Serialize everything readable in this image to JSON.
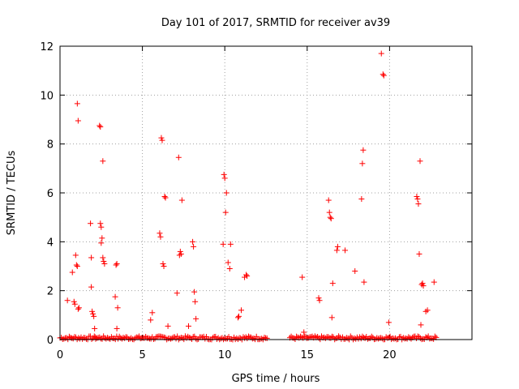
{
  "chart_data": {
    "type": "scatter",
    "title": "Day 101 of 2017, SRMTID for receiver av39",
    "xlabel": "GPS time / hours",
    "ylabel": "SRMTID / TECUs",
    "xlim": [
      0,
      25
    ],
    "ylim": [
      0,
      12
    ],
    "xticks": [
      0,
      5,
      10,
      15,
      20
    ],
    "yticks": [
      0,
      2,
      4,
      6,
      8,
      10,
      12
    ],
    "grid": true,
    "marker": "+",
    "color": "#ff0000",
    "series": [
      {
        "name": "SRMTID",
        "x": [
          0.45,
          0.75,
          0.85,
          0.9,
          0.95,
          1.0,
          1.05,
          1.05,
          1.1,
          1.1,
          1.15,
          1.85,
          1.9,
          1.9,
          1.95,
          2.0,
          2.05,
          2.1,
          2.15,
          2.4,
          2.45,
          2.45,
          2.5,
          2.5,
          2.55,
          2.6,
          2.6,
          2.65,
          2.7,
          3.35,
          3.4,
          3.45,
          3.45,
          3.5,
          5.5,
          5.6,
          6.05,
          6.1,
          6.15,
          6.2,
          6.25,
          6.3,
          6.35,
          6.4,
          6.55,
          7.1,
          7.2,
          7.25,
          7.3,
          7.35,
          7.4,
          7.8,
          8.05,
          8.1,
          8.15,
          8.2,
          8.25,
          9.9,
          9.95,
          10.0,
          10.05,
          10.1,
          10.2,
          10.3,
          10.35,
          10.8,
          10.85,
          11.0,
          11.2,
          11.3,
          11.35,
          14.7,
          14.8,
          15.7,
          15.75,
          16.3,
          16.35,
          16.4,
          16.45,
          16.5,
          16.55,
          16.8,
          16.85,
          17.3,
          17.9,
          18.3,
          18.35,
          18.4,
          18.45,
          19.5,
          19.6,
          19.65,
          19.95,
          21.65,
          21.7,
          21.75,
          21.8,
          21.85,
          21.9,
          21.95,
          22.0,
          22.05,
          22.2,
          22.3,
          22.7
        ],
        "y": [
          1.6,
          2.75,
          1.55,
          1.45,
          3.45,
          3.05,
          3.0,
          9.65,
          8.95,
          1.25,
          1.3,
          4.75,
          3.35,
          2.15,
          1.15,
          1.05,
          0.95,
          0.45,
          0.1,
          8.75,
          8.7,
          4.75,
          4.6,
          3.95,
          4.15,
          7.3,
          3.35,
          3.2,
          3.1,
          1.75,
          3.05,
          3.1,
          0.45,
          1.3,
          0.8,
          1.1,
          4.35,
          4.2,
          8.25,
          8.15,
          3.1,
          3.0,
          5.85,
          5.8,
          0.55,
          1.9,
          7.45,
          3.45,
          3.6,
          3.5,
          5.7,
          0.55,
          4.0,
          3.8,
          1.95,
          1.55,
          0.85,
          3.9,
          6.75,
          6.6,
          5.2,
          6.0,
          3.15,
          2.9,
          3.9,
          0.9,
          0.95,
          1.2,
          2.55,
          2.65,
          2.6,
          2.55,
          0.3,
          1.7,
          1.6,
          5.7,
          5.2,
          5.0,
          4.95,
          0.9,
          2.3,
          3.65,
          3.8,
          3.65,
          2.8,
          5.75,
          7.2,
          7.75,
          2.35,
          11.7,
          10.85,
          10.8,
          0.7,
          5.85,
          5.75,
          5.55,
          3.5,
          7.3,
          0.6,
          2.25,
          2.3,
          2.2,
          1.15,
          1.2,
          2.35
        ]
      }
    ]
  }
}
